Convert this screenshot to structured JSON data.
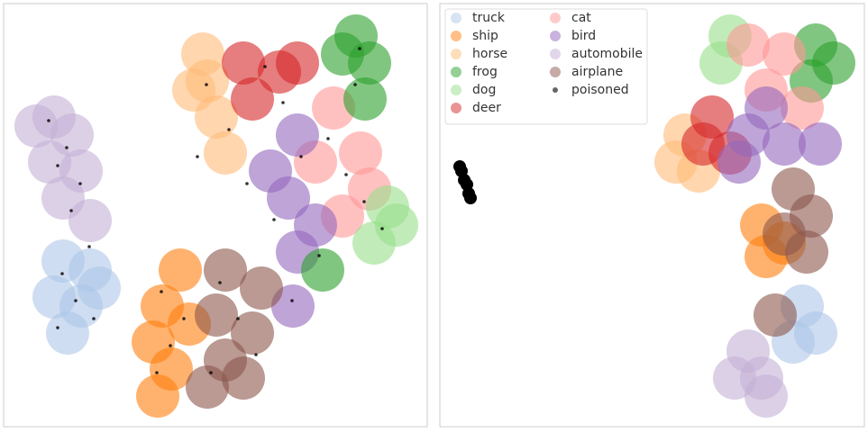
{
  "chart_data": [
    {
      "type": "scatter",
      "xlim": [
        0,
        470
      ],
      "ylim": [
        0,
        470
      ],
      "legend": false,
      "series": [
        {
          "color": "#c5b0d5",
          "x": [
            56,
            76,
            51,
            86,
            66,
            96,
            36
          ],
          "y": [
            344,
            324,
            294,
            284,
            254,
            229,
            334
          ]
        },
        {
          "color": "#aec7e8",
          "x": [
            66,
            96,
            56,
            86,
            71,
            106
          ],
          "y": [
            184,
            174,
            144,
            134,
            104,
            154
          ]
        },
        {
          "color": "#ffbb78",
          "x": [
            221,
            211,
            236,
            246,
            226
          ],
          "y": [
            414,
            374,
            344,
            304,
            384
          ]
        },
        {
          "color": "#d62728",
          "x": [
            266,
            306,
            276,
            326
          ],
          "y": [
            404,
            394,
            364,
            404
          ]
        },
        {
          "color": "#ff9896",
          "x": [
            366,
            396,
            406,
            376,
            346
          ],
          "y": [
            354,
            304,
            264,
            234,
            294
          ]
        },
        {
          "color": "#9467bd",
          "x": [
            326,
            316,
            326,
            321,
            296,
            346
          ],
          "y": [
            324,
            254,
            194,
            134,
            284,
            224
          ]
        },
        {
          "color": "#98df8a",
          "x": [
            426,
            436,
            411
          ],
          "y": [
            244,
            224,
            204
          ]
        },
        {
          "color": "#2ca02c",
          "x": [
            391,
            406,
            376,
            401,
            354
          ],
          "y": [
            434,
            404,
            414,
            364,
            174
          ]
        },
        {
          "color": "#ff7f0e",
          "x": [
            196,
            176,
            166,
            186,
            171,
            206
          ],
          "y": [
            174,
            134,
            94,
            64,
            34,
            114
          ]
        },
        {
          "color": "#8c564b",
          "x": [
            246,
            286,
            236,
            276,
            246,
            226,
            266
          ],
          "y": [
            174,
            154,
            124,
            104,
            74,
            44,
            54
          ]
        },
        {
          "color": "#000000",
          "x": [
            50,
            70,
            60,
            85,
            75,
            95,
            65,
            80,
            100,
            60,
            175,
            185,
            170,
            200,
            240,
            260,
            280,
            230,
            225,
            250,
            290,
            310,
            330,
            300,
            360,
            380,
            400,
            420,
            395,
            350,
            320,
            270,
            215,
            390
          ],
          "y": [
            340,
            310,
            290,
            270,
            240,
            200,
            170,
            140,
            120,
            110,
            150,
            90,
            60,
            120,
            160,
            120,
            80,
            60,
            380,
            330,
            400,
            360,
            300,
            230,
            320,
            280,
            250,
            220,
            420,
            190,
            140,
            270,
            300,
            380
          ]
        }
      ]
    },
    {
      "type": "scatter",
      "xlim": [
        0,
        470
      ],
      "ylim": [
        0,
        470
      ],
      "legend": "upper left",
      "series": [
        {
          "name": "truck",
          "color": "#aec7e8",
          "x": [
            402,
            417,
            392
          ],
          "y": [
            134,
            104,
            94
          ]
        },
        {
          "name": "ship",
          "color": "#ff7f0e",
          "x": [
            357,
            362,
            382
          ],
          "y": [
            224,
            189,
            204
          ]
        },
        {
          "name": "horse",
          "color": "#ffbb78",
          "x": [
            272,
            262,
            287
          ],
          "y": [
            324,
            294,
            284
          ]
        },
        {
          "name": "frog",
          "color": "#2ca02c",
          "x": [
            417,
            437,
            412
          ],
          "y": [
            424,
            404,
            384
          ]
        },
        {
          "name": "dog",
          "color": "#98df8a",
          "x": [
            322,
            312
          ],
          "y": [
            434,
            404
          ]
        },
        {
          "name": "deer",
          "color": "#d62728",
          "x": [
            302,
            292,
            322
          ],
          "y": [
            344,
            314,
            304
          ]
        },
        {
          "name": "cat",
          "color": "#ff9896",
          "x": [
            342,
            382,
            362,
            402
          ],
          "y": [
            424,
            414,
            374,
            354
          ]
        },
        {
          "name": "bird",
          "color": "#9467bd",
          "x": [
            342,
            382,
            422,
            362,
            332
          ],
          "y": [
            324,
            314,
            314,
            354,
            294
          ]
        },
        {
          "name": "automobile",
          "color": "#c5b0d5",
          "x": [
            342,
            327,
            357,
            362
          ],
          "y": [
            84,
            54,
            54,
            34
          ]
        },
        {
          "name": "airplane",
          "color": "#8c564b",
          "x": [
            392,
            412,
            382,
            407,
            372
          ],
          "y": [
            264,
            234,
            214,
            194,
            124
          ]
        },
        {
          "name": "poisoned",
          "color": "#000000",
          "x": [
            22,
            24,
            27,
            30,
            32,
            34
          ],
          "y": [
            289,
            284,
            274,
            269,
            259,
            254
          ]
        }
      ]
    }
  ]
}
